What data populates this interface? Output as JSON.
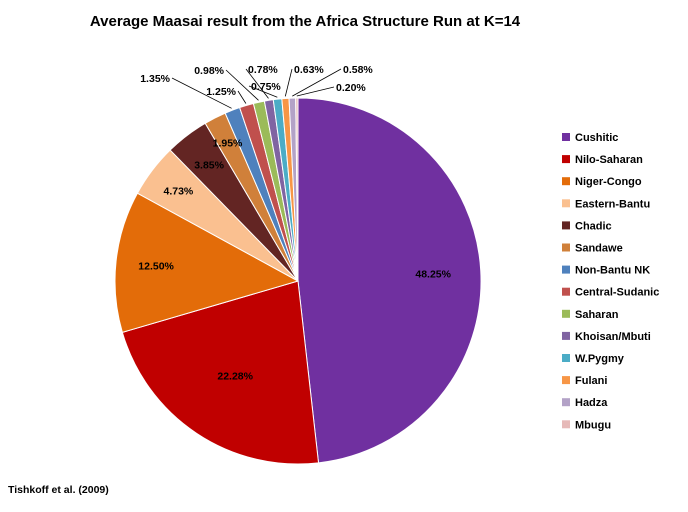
{
  "chart_data": {
    "type": "pie",
    "title": "Average Maasai result from the Africa Structure Run at K=14",
    "categories": [
      "Cushitic",
      "Nilo-Saharan",
      "Niger-Congo",
      "Eastern-Bantu",
      "Chadic",
      "Sandawe",
      "Non-Bantu NK",
      "Central-Sudanic",
      "Saharan",
      "Khoisan/Mbuti",
      "W.Pygmy",
      "Fulani",
      "Hadza",
      "Mbugu"
    ],
    "values": [
      48.25,
      22.28,
      12.5,
      4.73,
      3.85,
      1.95,
      1.35,
      1.25,
      0.98,
      0.78,
      0.75,
      0.63,
      0.58,
      0.2
    ],
    "labels": [
      "48.25%",
      "22.28%",
      "12.50%",
      "4.73%",
      "3.85%",
      "1.95%",
      "1.35%",
      "1.25%",
      "0.98%",
      "0.78%",
      "0.75%",
      "0.63%",
      "0.58%",
      "0.20%"
    ],
    "colors": [
      "#7030A0",
      "#C00000",
      "#E36C09",
      "#FAC090",
      "#632523",
      "#D0803A",
      "#4F81BD",
      "#C0504D",
      "#9BBB59",
      "#8064A2",
      "#4BACC6",
      "#F79646",
      "#B3A2C7",
      "#E6B9B8"
    ],
    "legend_position": "right",
    "source": "Tishkoff et al. (2009)"
  }
}
